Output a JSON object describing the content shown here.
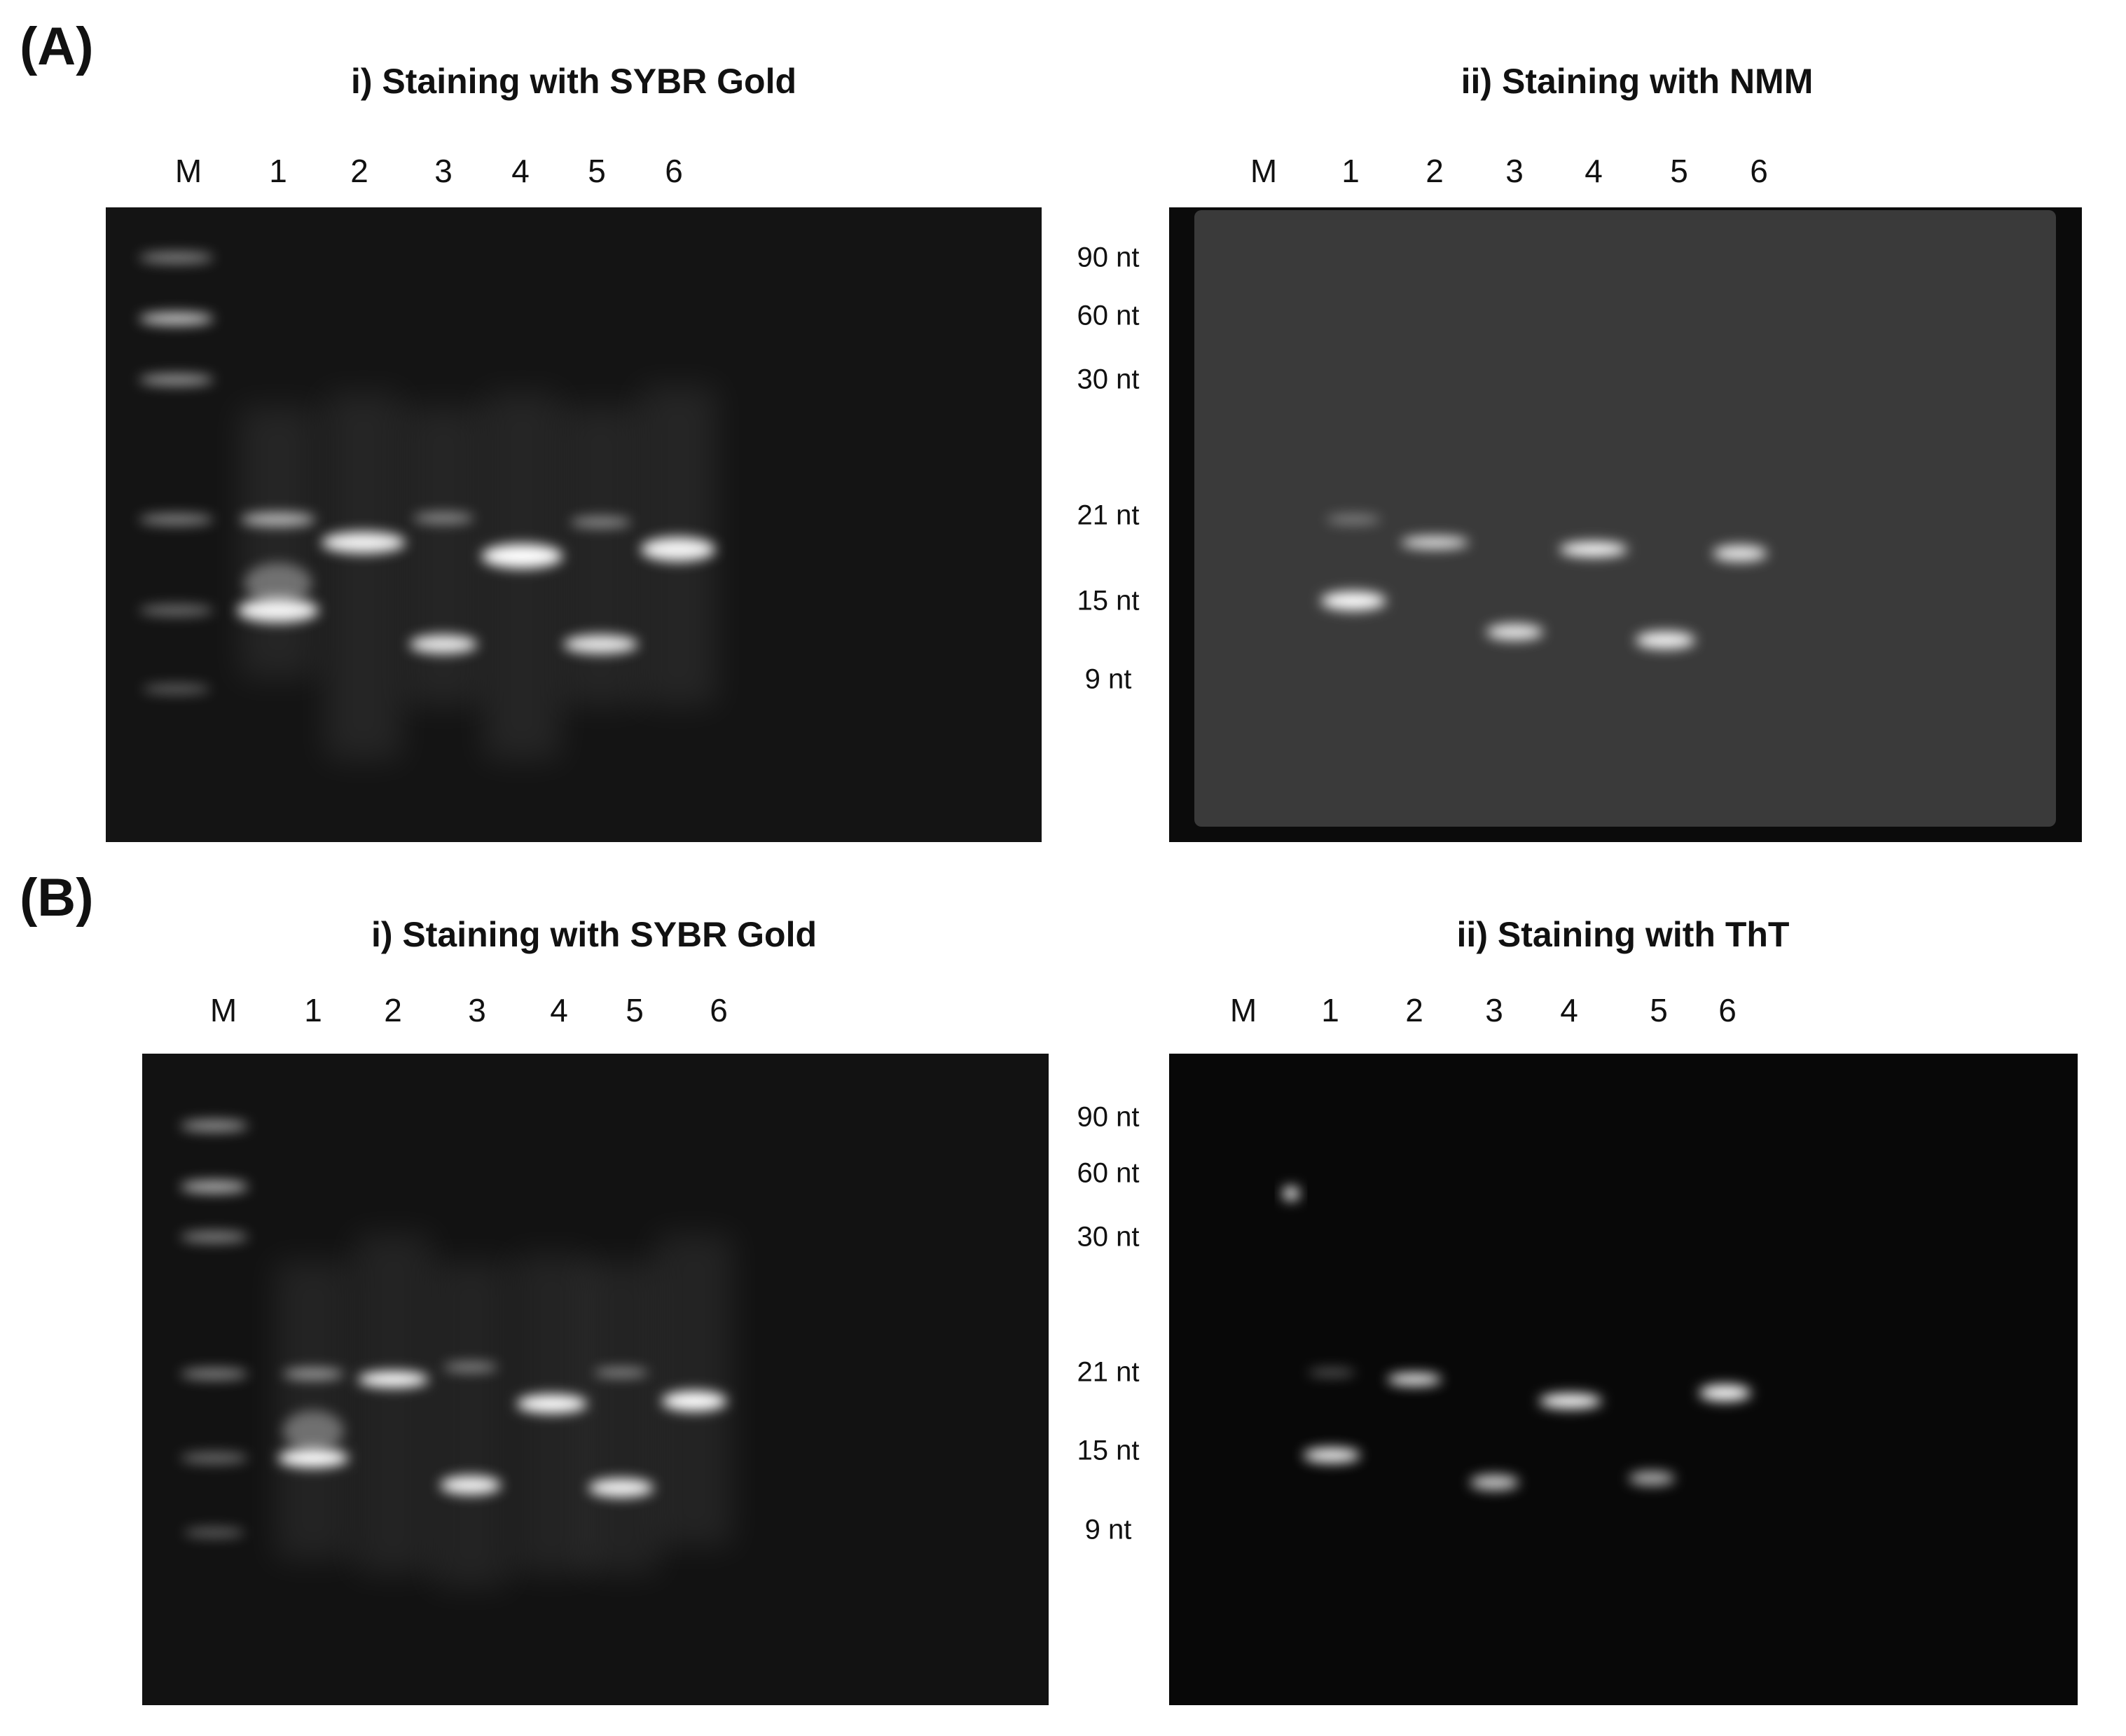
{
  "panels": [
    {
      "label": "(A)",
      "gels": [
        {
          "title": "i) Staining with SYBR Gold",
          "lanes": [
            "M",
            "1",
            "2",
            "3",
            "4",
            "5",
            "6"
          ]
        },
        {
          "title": "ii) Staining with NMM",
          "lanes": [
            "M",
            "1",
            "2",
            "3",
            "4",
            "5",
            "6"
          ]
        }
      ],
      "markers": [
        "90 nt",
        "60 nt",
        "30 nt",
        "21 nt",
        "15 nt",
        "9 nt"
      ]
    },
    {
      "label": "(B)",
      "gels": [
        {
          "title": "i) Staining with SYBR Gold",
          "lanes": [
            "M",
            "1",
            "2",
            "3",
            "4",
            "5",
            "6"
          ]
        },
        {
          "title": "ii) Staining with ThT",
          "lanes": [
            "M",
            "1",
            "2",
            "3",
            "4",
            "5",
            "6"
          ]
        }
      ],
      "markers": [
        "90 nt",
        "60 nt",
        "30 nt",
        "21 nt",
        "15 nt",
        "9 nt"
      ]
    }
  ]
}
